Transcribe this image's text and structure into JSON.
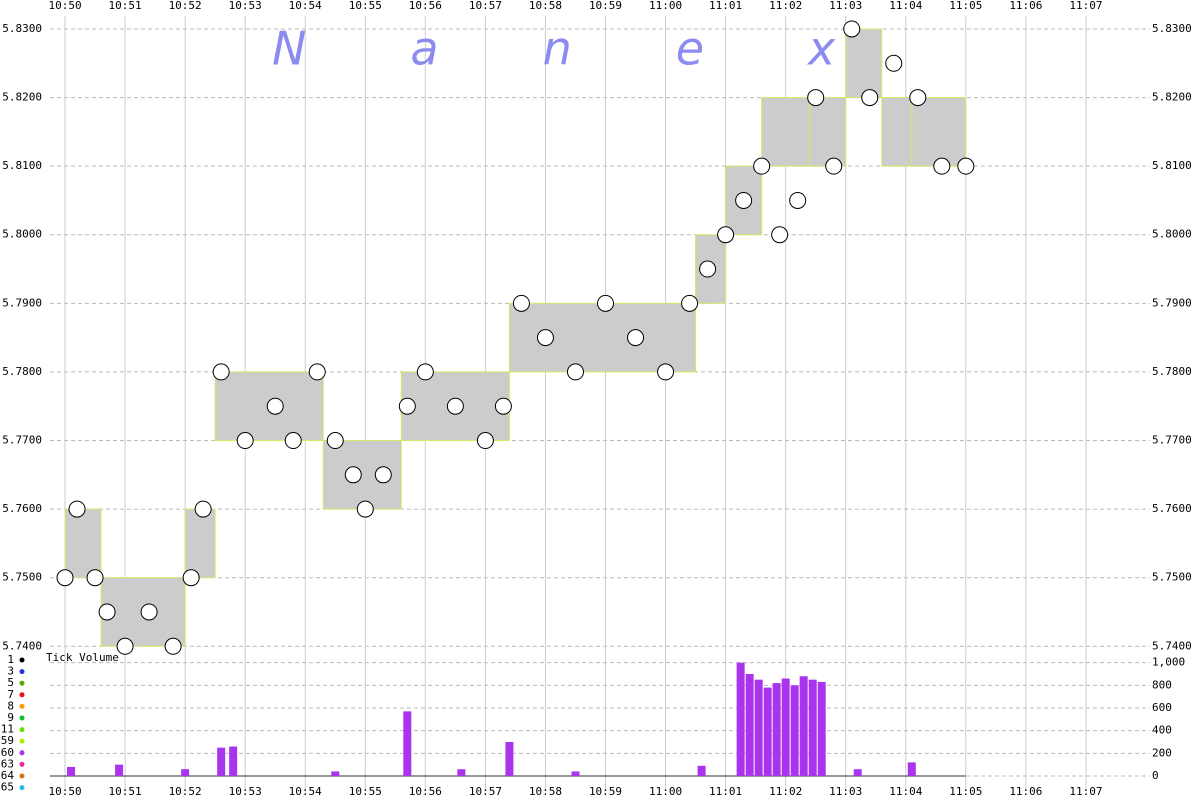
{
  "chart_data": [
    {
      "type": "tick",
      "title": "Nanex",
      "xlim": [
        -0.5,
        18.3
      ],
      "xticks": [
        {
          "value": 0,
          "label": "10:50"
        },
        {
          "value": 1,
          "label": "10:51"
        },
        {
          "value": 2,
          "label": "10:52"
        },
        {
          "value": 3,
          "label": "10:53"
        },
        {
          "value": 4,
          "label": "10:54"
        },
        {
          "value": 5,
          "label": "10:55"
        },
        {
          "value": 6,
          "label": "10:56"
        },
        {
          "value": 7,
          "label": "10:57"
        },
        {
          "value": 8,
          "label": "10:58"
        },
        {
          "value": 9,
          "label": "10:59"
        },
        {
          "value": 10,
          "label": "11:00"
        },
        {
          "value": 11,
          "label": "11:01"
        },
        {
          "value": 12,
          "label": "11:02"
        },
        {
          "value": 13,
          "label": "11:03"
        },
        {
          "value": 14,
          "label": "11:04"
        },
        {
          "value": 15,
          "label": "11:05"
        },
        {
          "value": 16,
          "label": "11:06"
        },
        {
          "value": 17,
          "label": "11:07"
        }
      ],
      "ylim": [
        5.738,
        5.8316
      ],
      "yticks": [
        {
          "value": 5.74,
          "label": "5.7400"
        },
        {
          "value": 5.75,
          "label": "5.7500"
        },
        {
          "value": 5.76,
          "label": "5.7600"
        },
        {
          "value": 5.77,
          "label": "5.7700"
        },
        {
          "value": 5.78,
          "label": "5.7800"
        },
        {
          "value": 5.79,
          "label": "5.7900"
        },
        {
          "value": 5.8,
          "label": "5.8000"
        },
        {
          "value": 5.81,
          "label": "5.8100"
        },
        {
          "value": 5.82,
          "label": "5.8200"
        },
        {
          "value": 5.83,
          "label": "5.8300"
        }
      ],
      "grid": true,
      "band": {
        "color": "#cccccc",
        "x": [
          0,
          0.6,
          2.0,
          2.5,
          4.3,
          5.6,
          7.4,
          10.5,
          11.0,
          11.6,
          12.4,
          13.0,
          13.6,
          14.1,
          15.0
        ],
        "low": [
          5.75,
          5.74,
          5.75,
          5.77,
          5.76,
          5.77,
          5.78,
          5.79,
          5.8,
          5.81,
          5.81,
          5.82,
          5.81,
          5.81,
          5.81
        ],
        "high": [
          5.76,
          5.75,
          5.76,
          5.78,
          5.77,
          5.78,
          5.79,
          5.8,
          5.81,
          5.82,
          5.82,
          5.83,
          5.82,
          5.82,
          5.82
        ]
      },
      "trades": {
        "color": "#ffffff",
        "x": [
          0.0,
          0.2,
          0.5,
          0.7,
          1.0,
          1.4,
          1.8,
          2.1,
          2.3,
          2.6,
          3.0,
          3.5,
          3.8,
          4.2,
          4.5,
          4.8,
          5.0,
          5.3,
          5.7,
          6.0,
          6.5,
          7.0,
          7.3,
          7.6,
          8.0,
          8.5,
          9.0,
          9.5,
          10.0,
          10.4,
          10.7,
          11.0,
          11.3,
          11.6,
          11.9,
          12.2,
          12.5,
          12.8,
          13.1,
          13.4,
          13.8,
          14.2,
          14.6,
          15.0
        ],
        "values": [
          5.75,
          5.76,
          5.75,
          5.745,
          5.74,
          5.745,
          5.74,
          5.75,
          5.76,
          5.78,
          5.77,
          5.775,
          5.77,
          5.78,
          5.77,
          5.765,
          5.76,
          5.765,
          5.775,
          5.78,
          5.775,
          5.77,
          5.775,
          5.79,
          5.785,
          5.78,
          5.79,
          5.785,
          5.78,
          5.79,
          5.795,
          5.8,
          5.805,
          5.81,
          5.8,
          5.805,
          5.82,
          5.81,
          5.83,
          5.82,
          5.825,
          5.82,
          5.81,
          5.81
        ]
      },
      "legend": [
        {
          "name": "1",
          "color": "#000000"
        },
        {
          "name": "3",
          "color": "#2233dd"
        },
        {
          "name": "5",
          "color": "#55aa00"
        },
        {
          "name": "7",
          "color": "#ee1111"
        },
        {
          "name": "8",
          "color": "#ff9900"
        },
        {
          "name": "9",
          "color": "#11bb33"
        },
        {
          "name": "11",
          "color": "#66dd00"
        },
        {
          "name": "59",
          "color": "#aaee00"
        },
        {
          "name": "60",
          "color": "#aa33ee"
        },
        {
          "name": "63",
          "color": "#ee22aa"
        },
        {
          "name": "64",
          "color": "#cc7711"
        },
        {
          "name": "65",
          "color": "#22bbee"
        }
      ]
    },
    {
      "type": "bar",
      "title": "Tick Volume",
      "color": "#aa33ee",
      "xlim": [
        -0.5,
        18.3
      ],
      "xticks": [
        {
          "value": 0,
          "label": "10:50"
        },
        {
          "value": 1,
          "label": "10:51"
        },
        {
          "value": 2,
          "label": "10:52"
        },
        {
          "value": 3,
          "label": "10:53"
        },
        {
          "value": 4,
          "label": "10:54"
        },
        {
          "value": 5,
          "label": "10:55"
        },
        {
          "value": 6,
          "label": "10:56"
        },
        {
          "value": 7,
          "label": "10:57"
        },
        {
          "value": 8,
          "label": "10:58"
        },
        {
          "value": 9,
          "label": "10:59"
        },
        {
          "value": 10,
          "label": "11:00"
        },
        {
          "value": 11,
          "label": "11:01"
        },
        {
          "value": 12,
          "label": "11:02"
        },
        {
          "value": 13,
          "label": "11:03"
        },
        {
          "value": 14,
          "label": "11:04"
        },
        {
          "value": 15,
          "label": "11:05"
        },
        {
          "value": 16,
          "label": "11:06"
        },
        {
          "value": 17,
          "label": "11:07"
        }
      ],
      "ylim": [
        0,
        1050
      ],
      "yticks": [
        0,
        200,
        400,
        600,
        800,
        {
          "value": 1000,
          "label": "1,000"
        }
      ],
      "x": [
        0.1,
        0.9,
        2.0,
        2.6,
        2.8,
        4.5,
        5.7,
        6.6,
        7.4,
        8.5,
        10.6,
        11.25,
        11.4,
        11.55,
        11.7,
        11.85,
        12.0,
        12.15,
        12.3,
        12.45,
        12.6,
        13.2,
        14.1
      ],
      "values": [
        80,
        100,
        60,
        250,
        260,
        40,
        570,
        60,
        300,
        40,
        90,
        1000,
        900,
        850,
        780,
        820,
        860,
        800,
        880,
        850,
        830,
        60,
        120
      ]
    }
  ]
}
